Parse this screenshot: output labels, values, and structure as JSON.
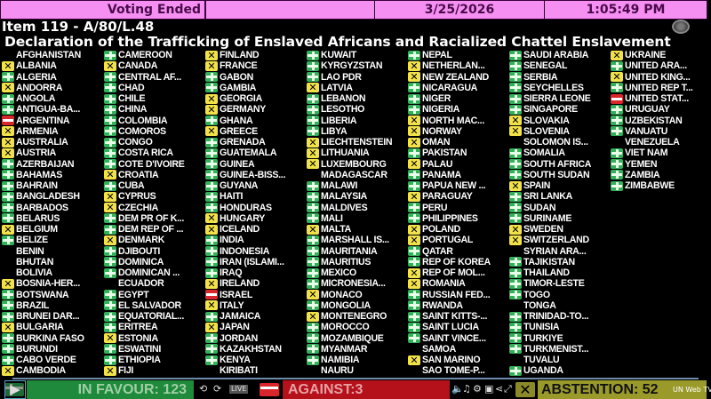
{
  "header": {
    "status": "Voting Ended",
    "date": "3/25/2026",
    "time": "1:05:49 PM"
  },
  "item": "Item 119 - A/80/L.48",
  "title": "Declaration of the Trafficking of Enslaved Africans and Racialized Chattel Enslavement",
  "vote_colors": {
    "Y": "#35b05a",
    "N": "#d8262c",
    "A": "#f2e24a"
  },
  "columns": [
    [
      [
        "AFGHANISTAN",
        ""
      ],
      [
        "ALBANIA",
        "A"
      ],
      [
        "ALGERIA",
        "Y"
      ],
      [
        "ANDORRA",
        "A"
      ],
      [
        "ANGOLA",
        "Y"
      ],
      [
        "ANTIGUA-BA...",
        "Y"
      ],
      [
        "ARGENTINA",
        "N"
      ],
      [
        "ARMENIA",
        "A"
      ],
      [
        "AUSTRALIA",
        "A"
      ],
      [
        "AUSTRIA",
        "A"
      ],
      [
        "AZERBAIJAN",
        "Y"
      ],
      [
        "BAHAMAS",
        "Y"
      ],
      [
        "BAHRAIN",
        "Y"
      ],
      [
        "BANGLADESH",
        "Y"
      ],
      [
        "BARBADOS",
        "Y"
      ],
      [
        "BELARUS",
        "Y"
      ],
      [
        "BELGIUM",
        "A"
      ],
      [
        "BELIZE",
        "Y"
      ],
      [
        "BENIN",
        ""
      ],
      [
        "BHUTAN",
        ""
      ],
      [
        "BOLIVIA",
        ""
      ],
      [
        "BOSNIA-HER...",
        "A"
      ],
      [
        "BOTSWANA",
        "Y"
      ],
      [
        "BRAZIL",
        "Y"
      ],
      [
        "BRUNEI DAR...",
        "Y"
      ],
      [
        "BULGARIA",
        "A"
      ],
      [
        "BURKINA FASO",
        "Y"
      ],
      [
        "BURUNDI",
        "Y"
      ],
      [
        "CABO VERDE",
        "Y"
      ],
      [
        "CAMBODIA",
        "A"
      ]
    ],
    [
      [
        "CAMEROON",
        "Y"
      ],
      [
        "CANADA",
        "A"
      ],
      [
        "CENTRAL AF...",
        "Y"
      ],
      [
        "CHAD",
        "Y"
      ],
      [
        "CHILE",
        "Y"
      ],
      [
        "CHINA",
        "Y"
      ],
      [
        "COLOMBIA",
        "Y"
      ],
      [
        "COMOROS",
        "Y"
      ],
      [
        "CONGO",
        "Y"
      ],
      [
        "COSTA RICA",
        "Y"
      ],
      [
        "COTE D'IVOIRE",
        "Y"
      ],
      [
        "CROATIA",
        "A"
      ],
      [
        "CUBA",
        "Y"
      ],
      [
        "CYPRUS",
        "A"
      ],
      [
        "CZECHIA",
        "A"
      ],
      [
        "DEM PR OF K...",
        "Y"
      ],
      [
        "DEM REP OF ...",
        "Y"
      ],
      [
        "DENMARK",
        "A"
      ],
      [
        "DJIBOUTI",
        "Y"
      ],
      [
        "DOMINICA",
        "Y"
      ],
      [
        "DOMINICAN ...",
        "Y"
      ],
      [
        "ECUADOR",
        ""
      ],
      [
        "EGYPT",
        "Y"
      ],
      [
        "EL SALVADOR",
        "Y"
      ],
      [
        "EQUATORIAL...",
        "Y"
      ],
      [
        "ERITREA",
        "Y"
      ],
      [
        "ESTONIA",
        "A"
      ],
      [
        "ESWATINI",
        "Y"
      ],
      [
        "ETHIOPIA",
        "Y"
      ],
      [
        "FIJI",
        "A"
      ]
    ],
    [
      [
        "FINLAND",
        "A"
      ],
      [
        "FRANCE",
        "A"
      ],
      [
        "GABON",
        "Y"
      ],
      [
        "GAMBIA",
        "Y"
      ],
      [
        "GEORGIA",
        "A"
      ],
      [
        "GERMANY",
        "A"
      ],
      [
        "GHANA",
        "Y"
      ],
      [
        "GREECE",
        "A"
      ],
      [
        "GRENADA",
        "Y"
      ],
      [
        "GUATEMALA",
        "Y"
      ],
      [
        "GUINEA",
        "Y"
      ],
      [
        "GUINEA-BISS...",
        "Y"
      ],
      [
        "GUYANA",
        "Y"
      ],
      [
        "HAITI",
        "Y"
      ],
      [
        "HONDURAS",
        "Y"
      ],
      [
        "HUNGARY",
        "A"
      ],
      [
        "ICELAND",
        "A"
      ],
      [
        "INDIA",
        "Y"
      ],
      [
        "INDONESIA",
        "Y"
      ],
      [
        "IRAN (ISLAMI...",
        "Y"
      ],
      [
        "IRAQ",
        "Y"
      ],
      [
        "IRELAND",
        "A"
      ],
      [
        "ISRAEL",
        "N"
      ],
      [
        "ITALY",
        "A"
      ],
      [
        "JAMAICA",
        "Y"
      ],
      [
        "JAPAN",
        "A"
      ],
      [
        "JORDAN",
        "Y"
      ],
      [
        "KAZAKHSTAN",
        "Y"
      ],
      [
        "KENYA",
        "Y"
      ],
      [
        "KIRIBATI",
        ""
      ]
    ],
    [
      [
        "KUWAIT",
        "Y"
      ],
      [
        "KYRGYZSTAN",
        "Y"
      ],
      [
        "LAO PDR",
        "Y"
      ],
      [
        "LATVIA",
        "A"
      ],
      [
        "LEBANON",
        "Y"
      ],
      [
        "LESOTHO",
        "Y"
      ],
      [
        "LIBERIA",
        "Y"
      ],
      [
        "LIBYA",
        "Y"
      ],
      [
        "LIECHTENSTEIN",
        "A"
      ],
      [
        "LITHUANIA",
        "A"
      ],
      [
        "LUXEMBOURG",
        "A"
      ],
      [
        "MADAGASCAR",
        ""
      ],
      [
        "MALAWI",
        "Y"
      ],
      [
        "MALAYSIA",
        "Y"
      ],
      [
        "MALDIVES",
        "Y"
      ],
      [
        "MALI",
        "Y"
      ],
      [
        "MALTA",
        "A"
      ],
      [
        "MARSHALL IS...",
        "Y"
      ],
      [
        "MAURITANIA",
        "Y"
      ],
      [
        "MAURITIUS",
        "Y"
      ],
      [
        "MEXICO",
        "Y"
      ],
      [
        "MICRONESIA...",
        "Y"
      ],
      [
        "MONACO",
        "A"
      ],
      [
        "MONGOLIA",
        "Y"
      ],
      [
        "MONTENEGRO",
        "A"
      ],
      [
        "MOROCCO",
        "Y"
      ],
      [
        "MOZAMBIQUE",
        "Y"
      ],
      [
        "MYANMAR",
        "Y"
      ],
      [
        "NAMIBIA",
        "Y"
      ],
      [
        "NAURU",
        ""
      ]
    ],
    [
      [
        "NEPAL",
        "Y"
      ],
      [
        "NETHERLAN...",
        "A"
      ],
      [
        "NEW ZEALAND",
        "A"
      ],
      [
        "NICARAGUA",
        "Y"
      ],
      [
        "NIGER",
        "Y"
      ],
      [
        "NIGERIA",
        "Y"
      ],
      [
        "NORTH MAC...",
        "A"
      ],
      [
        "NORWAY",
        "A"
      ],
      [
        "OMAN",
        "A"
      ],
      [
        "PAKISTAN",
        "Y"
      ],
      [
        "PALAU",
        "A"
      ],
      [
        "PANAMA",
        "Y"
      ],
      [
        "PAPUA NEW ...",
        "Y"
      ],
      [
        "PARAGUAY",
        "A"
      ],
      [
        "PERU",
        "Y"
      ],
      [
        "PHILIPPINES",
        "Y"
      ],
      [
        "POLAND",
        "A"
      ],
      [
        "PORTUGAL",
        "A"
      ],
      [
        "QATAR",
        "Y"
      ],
      [
        "REP OF KOREA",
        "Y"
      ],
      [
        "REP OF MOL...",
        "A"
      ],
      [
        "ROMANIA",
        "A"
      ],
      [
        "RUSSIAN FED...",
        "Y"
      ],
      [
        "RWANDA",
        "Y"
      ],
      [
        "SAINT KITTS-...",
        "Y"
      ],
      [
        "SAINT LUCIA",
        "Y"
      ],
      [
        "SAINT VINCE...",
        "Y"
      ],
      [
        "SAMOA",
        ""
      ],
      [
        "SAN MARINO",
        "A"
      ],
      [
        "SAO TOME-P...",
        ""
      ]
    ],
    [
      [
        "SAUDI ARABIA",
        "Y"
      ],
      [
        "SENEGAL",
        "Y"
      ],
      [
        "SERBIA",
        "Y"
      ],
      [
        "SEYCHELLES",
        "Y"
      ],
      [
        "SIERRA LEONE",
        "Y"
      ],
      [
        "SINGAPORE",
        "Y"
      ],
      [
        "SLOVAKIA",
        "A"
      ],
      [
        "SLOVENIA",
        "A"
      ],
      [
        "SOLOMON IS...",
        ""
      ],
      [
        "SOMALIA",
        "Y"
      ],
      [
        "SOUTH AFRICA",
        "Y"
      ],
      [
        "SOUTH SUDAN",
        "Y"
      ],
      [
        "SPAIN",
        "A"
      ],
      [
        "SRI LANKA",
        "Y"
      ],
      [
        "SUDAN",
        "Y"
      ],
      [
        "SURINAME",
        "Y"
      ],
      [
        "SWEDEN",
        "A"
      ],
      [
        "SWITZERLAND",
        "A"
      ],
      [
        "SYRIAN ARA...",
        ""
      ],
      [
        "TAJIKISTAN",
        "Y"
      ],
      [
        "THAILAND",
        "Y"
      ],
      [
        "TIMOR-LESTE",
        "Y"
      ],
      [
        "TOGO",
        "Y"
      ],
      [
        "TONGA",
        ""
      ],
      [
        "TRINIDAD-TO...",
        "Y"
      ],
      [
        "TUNISIA",
        "Y"
      ],
      [
        "TURKIYE",
        "Y"
      ],
      [
        "TURKMENIST...",
        "Y"
      ],
      [
        "TUVALU",
        ""
      ],
      [
        "UGANDA",
        "Y"
      ]
    ],
    [
      [
        "UKRAINE",
        "A"
      ],
      [
        "UNITED ARA...",
        "Y"
      ],
      [
        "UNITED KING...",
        "A"
      ],
      [
        "UNITED REP T...",
        "Y"
      ],
      [
        "UNITED STAT...",
        "N"
      ],
      [
        "URUGUAY",
        "Y"
      ],
      [
        "UZBEKISTAN",
        "Y"
      ],
      [
        "VANUATU",
        "Y"
      ],
      [
        "VENEZUELA",
        ""
      ],
      [
        "VIET NAM",
        "Y"
      ],
      [
        "YEMEN",
        "Y"
      ],
      [
        "ZAMBIA",
        "Y"
      ],
      [
        "ZIMBABWE",
        "Y"
      ]
    ]
  ],
  "totals": {
    "in_favour": "IN FAVOUR: 123",
    "against": "AGAINST:3",
    "abstention": "ABSTENTION: 52"
  },
  "player": {
    "live": "LIVE",
    "brand": "UN Web TV"
  }
}
